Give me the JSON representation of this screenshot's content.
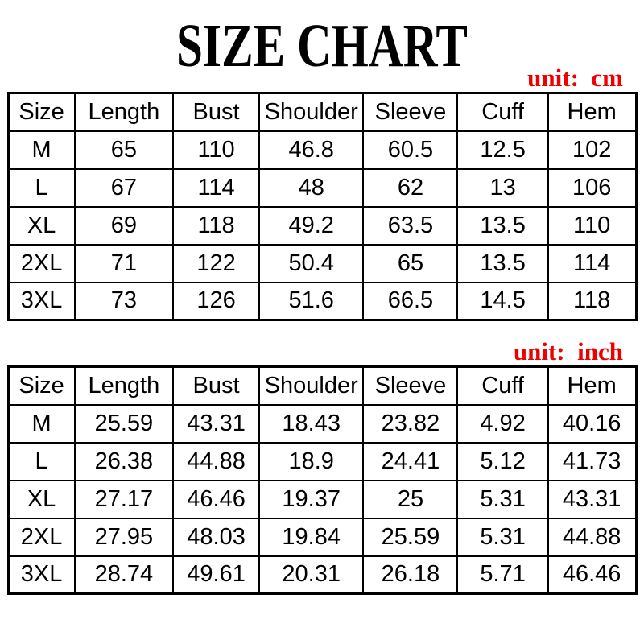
{
  "page": {
    "title": "SIZE CHART",
    "background_color": "#ffffff",
    "text_color": "#000000",
    "accent_red": "#ee0000"
  },
  "chart_data": [
    {
      "type": "table",
      "unit": "cm",
      "unit_label": "unit:  cm",
      "columns": [
        "Size",
        "Length",
        "Bust",
        "Shoulder",
        "Sleeve",
        "Cuff",
        "Hem"
      ],
      "rows": [
        [
          "M",
          "65",
          "110",
          "46.8",
          "60.5",
          "12.5",
          "102"
        ],
        [
          "L",
          "67",
          "114",
          "48",
          "62",
          "13",
          "106"
        ],
        [
          "XL",
          "69",
          "118",
          "49.2",
          "63.5",
          "13.5",
          "110"
        ],
        [
          "2XL",
          "71",
          "122",
          "50.4",
          "65",
          "13.5",
          "114"
        ],
        [
          "3XL",
          "73",
          "126",
          "51.6",
          "66.5",
          "14.5",
          "118"
        ]
      ]
    },
    {
      "type": "table",
      "unit": "inch",
      "unit_label": "unit:  inch",
      "columns": [
        "Size",
        "Length",
        "Bust",
        "Shoulder",
        "Sleeve",
        "Cuff",
        "Hem"
      ],
      "rows": [
        [
          "M",
          "25.59",
          "43.31",
          "18.43",
          "23.82",
          "4.92",
          "40.16"
        ],
        [
          "L",
          "26.38",
          "44.88",
          "18.9",
          "24.41",
          "5.12",
          "41.73"
        ],
        [
          "XL",
          "27.17",
          "46.46",
          "19.37",
          "25",
          "5.31",
          "43.31"
        ],
        [
          "2XL",
          "27.95",
          "48.03",
          "19.84",
          "25.59",
          "5.31",
          "44.88"
        ],
        [
          "3XL",
          "28.74",
          "49.61",
          "20.31",
          "26.18",
          "5.71",
          "46.46"
        ]
      ]
    }
  ]
}
